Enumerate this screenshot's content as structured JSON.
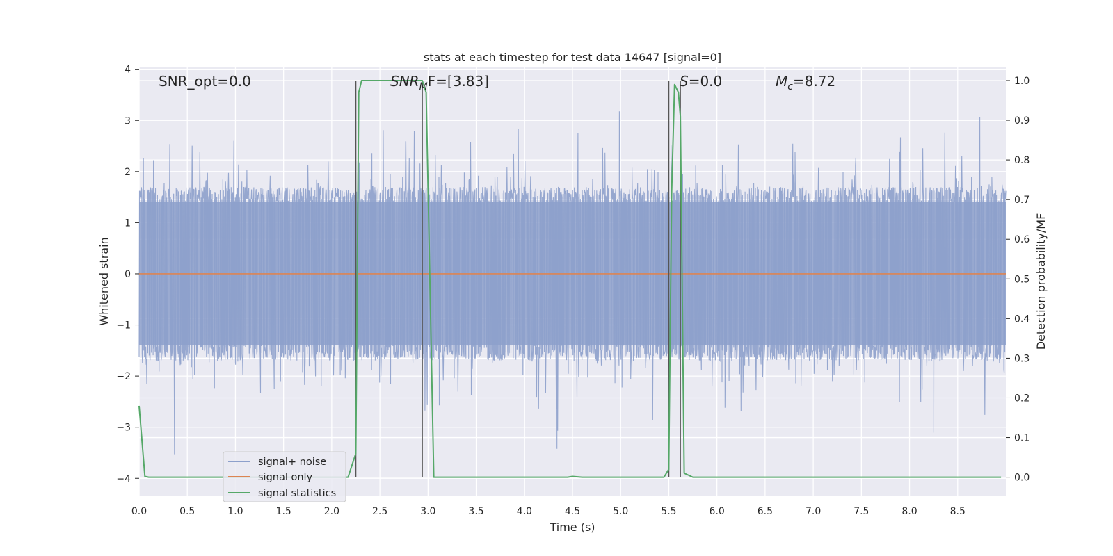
{
  "chart_data": {
    "type": "line",
    "title": "stats at each timestep for test data 14647 [signal=0]",
    "xlabel": "Time (s)",
    "ylabel": "Whitened strain",
    "y2label": "Detection probability/MF",
    "xlim": [
      0,
      9.0
    ],
    "ylim": [
      -4.35,
      4.05
    ],
    "y2lim": [
      -0.048,
      1.035
    ],
    "grid": true,
    "legend_position": "lower-left",
    "xticks": [
      "0.0",
      "0.5",
      "1.0",
      "1.5",
      "2.0",
      "2.5",
      "3.0",
      "3.5",
      "4.0",
      "4.5",
      "5.0",
      "5.5",
      "6.0",
      "6.5",
      "7.0",
      "7.5",
      "8.0",
      "8.5"
    ],
    "yticks": [
      "4",
      "3",
      "2",
      "1",
      "0",
      "−1",
      "−2",
      "−3",
      "−4"
    ],
    "y2ticks": [
      "1.0",
      "0.9",
      "0.8",
      "0.7",
      "0.6",
      "0.5",
      "0.4",
      "0.3",
      "0.2",
      "0.1",
      "0.0"
    ],
    "annotations": {
      "snr_opt": "SNR_opt=0.0",
      "snr_mf_base": "SNR",
      "snr_mf_sub": "M",
      "snr_mf_rest": "F=[3.83]",
      "s_italic": "S",
      "s_rest": "=0.0",
      "mc_base": "M",
      "mc_sub": "c",
      "mc_rest": "=8.72"
    },
    "legend": [
      "signal+ noise",
      "signal only",
      "signal statistics"
    ],
    "colors": {
      "noise": "#8da0cb",
      "signal": "#dd8452",
      "stats": "#55a868",
      "vline": "#555555",
      "bg": "#eaeaf2"
    },
    "noise_amplitude": {
      "core": 1.4,
      "max_abs": 3.9,
      "seed": 14647
    },
    "signal_only": {
      "value": 0.0
    },
    "vertical_lines_x": [
      2.25,
      2.94,
      5.5,
      5.62
    ],
    "stats_series": {
      "x": [
        0.0,
        0.06,
        0.1,
        0.2,
        0.5,
        1.0,
        1.5,
        2.0,
        2.17,
        2.25,
        2.28,
        2.31,
        2.5,
        2.8,
        2.94,
        2.98,
        3.06,
        3.5,
        4.0,
        4.45,
        4.5,
        4.6,
        5.0,
        5.45,
        5.5,
        5.53,
        5.56,
        5.6,
        5.62,
        5.66,
        5.75,
        6.0,
        7.0,
        8.0,
        8.95
      ],
      "y": [
        0.18,
        0.002,
        0.0,
        0.0,
        0.0,
        0.0,
        0.0,
        0.0,
        0.0,
        0.06,
        0.97,
        1.0,
        1.0,
        1.0,
        1.0,
        0.97,
        0.0,
        0.0,
        0.0,
        0.0,
        0.002,
        0.0,
        0.0,
        0.0,
        0.02,
        0.72,
        0.99,
        0.97,
        0.91,
        0.01,
        0.0,
        0.0,
        0.0,
        0.0,
        0.0
      ]
    }
  }
}
